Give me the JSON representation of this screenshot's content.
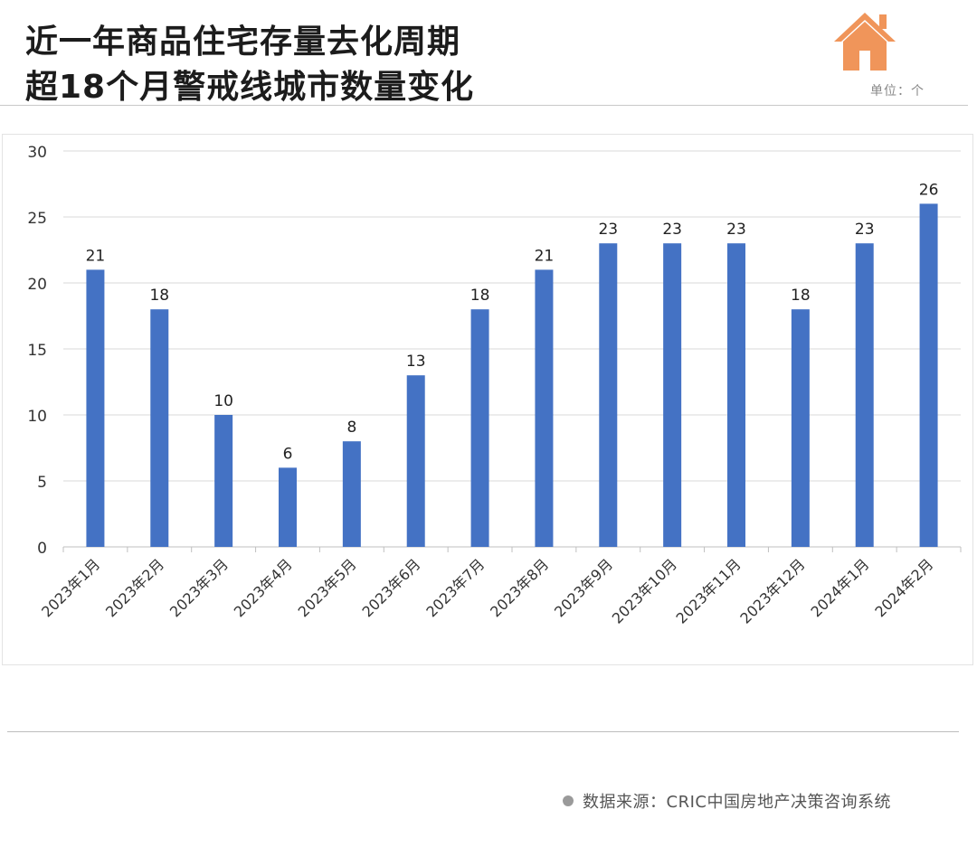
{
  "header": {
    "title_line1": "近一年商品住宅存量去化周期",
    "title_line2": "超18个月警戒线城市数量变化",
    "unit": "单位：个",
    "icon": "house-icon"
  },
  "footer": {
    "source": "数据来源：CRIC中国房地产决策咨询系统"
  },
  "colors": {
    "bar": "#4472c4",
    "icon": "#f0955a",
    "grid": "#d9d9d9"
  },
  "chart_data": {
    "type": "bar",
    "categories": [
      "2023年1月",
      "2023年2月",
      "2023年3月",
      "2023年4月",
      "2023年5月",
      "2023年6月",
      "2023年7月",
      "2023年8月",
      "2023年9月",
      "2023年10月",
      "2023年11月",
      "2023年12月",
      "2024年1月",
      "2024年2月"
    ],
    "values": [
      21,
      18,
      10,
      6,
      8,
      13,
      18,
      21,
      23,
      23,
      23,
      18,
      23,
      26
    ],
    "yticks": [
      0,
      5,
      10,
      15,
      20,
      25,
      30
    ],
    "ylim": [
      0,
      30
    ],
    "grid": true,
    "data_labels": true,
    "legend": "none"
  }
}
